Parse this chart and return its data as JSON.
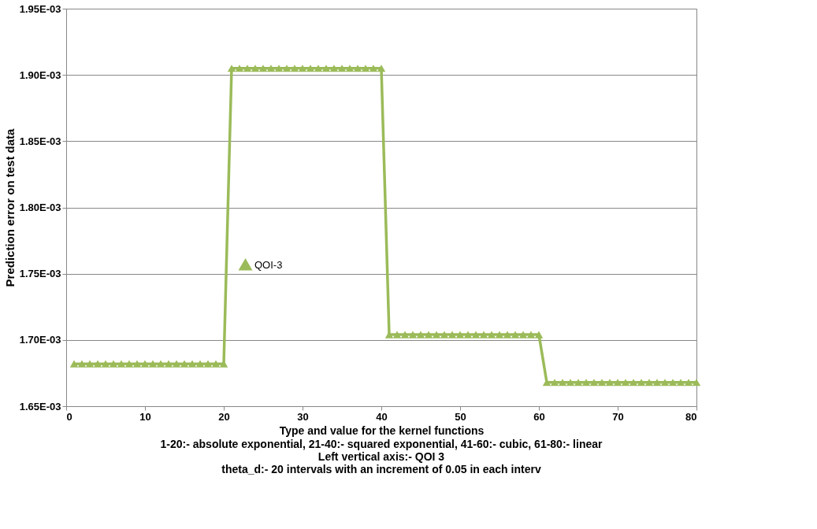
{
  "chart_data": {
    "type": "line",
    "xlabel": "Type and value for the kernel functions",
    "ylabel": "Prediction error on test data",
    "annotations": [
      "1-20:- absolute exponential, 21-40:- squared exponential, 41-60:- cubic, 61-80:- linear",
      "Left vertical axis:- QOI 3",
      "theta_d:- 20 intervals with an increment of 0.05 in each interv"
    ],
    "x": [
      1,
      2,
      3,
      4,
      5,
      6,
      7,
      8,
      9,
      10,
      11,
      12,
      13,
      14,
      15,
      16,
      17,
      18,
      19,
      20,
      21,
      22,
      23,
      24,
      25,
      26,
      27,
      28,
      29,
      30,
      31,
      32,
      33,
      34,
      35,
      36,
      37,
      38,
      39,
      40,
      41,
      42,
      43,
      44,
      45,
      46,
      47,
      48,
      49,
      50,
      51,
      52,
      53,
      54,
      55,
      56,
      57,
      58,
      59,
      60,
      61,
      62,
      63,
      64,
      65,
      66,
      67,
      68,
      69,
      70,
      71,
      72,
      73,
      74,
      75,
      76,
      77,
      78,
      79,
      80
    ],
    "series": [
      {
        "name": "QOI-3",
        "color": "#9bbb59",
        "values": [
          0.001682,
          0.001682,
          0.001682,
          0.001682,
          0.001682,
          0.001682,
          0.001682,
          0.001682,
          0.001682,
          0.001682,
          0.001682,
          0.001682,
          0.001682,
          0.001682,
          0.001682,
          0.001682,
          0.001682,
          0.001682,
          0.001682,
          0.001682,
          0.001905,
          0.001905,
          0.001905,
          0.001905,
          0.001905,
          0.001905,
          0.001905,
          0.001905,
          0.001905,
          0.001905,
          0.001905,
          0.001905,
          0.001905,
          0.001905,
          0.001905,
          0.001905,
          0.001905,
          0.001905,
          0.001905,
          0.001905,
          0.001704,
          0.001704,
          0.001704,
          0.001704,
          0.001704,
          0.001704,
          0.001704,
          0.001704,
          0.001704,
          0.001704,
          0.001704,
          0.001704,
          0.001704,
          0.001704,
          0.001704,
          0.001704,
          0.001704,
          0.001704,
          0.001704,
          0.001704,
          0.001668,
          0.001668,
          0.001668,
          0.001668,
          0.001668,
          0.001668,
          0.001668,
          0.001668,
          0.001668,
          0.001668,
          0.001668,
          0.001668,
          0.001668,
          0.001668,
          0.001668,
          0.001668,
          0.001668,
          0.001668,
          0.001668,
          0.001668
        ]
      }
    ],
    "xlim": [
      0,
      80
    ],
    "xticks": [
      0,
      10,
      20,
      30,
      40,
      50,
      60,
      70,
      80
    ],
    "ylim": [
      0.00165,
      0.00195
    ],
    "yticks": [
      {
        "value": 0.00165,
        "label": "1.65E-03"
      },
      {
        "value": 0.0017,
        "label": "1.70E-03"
      },
      {
        "value": 0.00175,
        "label": "1.75E-03"
      },
      {
        "value": 0.0018,
        "label": "1.80E-03"
      },
      {
        "value": 0.00185,
        "label": "1.85E-03"
      },
      {
        "value": 0.0019,
        "label": "1.90E-03"
      },
      {
        "value": 0.00195,
        "label": "1.95E-03"
      }
    ],
    "grid": "y",
    "legend": "left",
    "marker": "triangle",
    "line_style": "solid"
  }
}
